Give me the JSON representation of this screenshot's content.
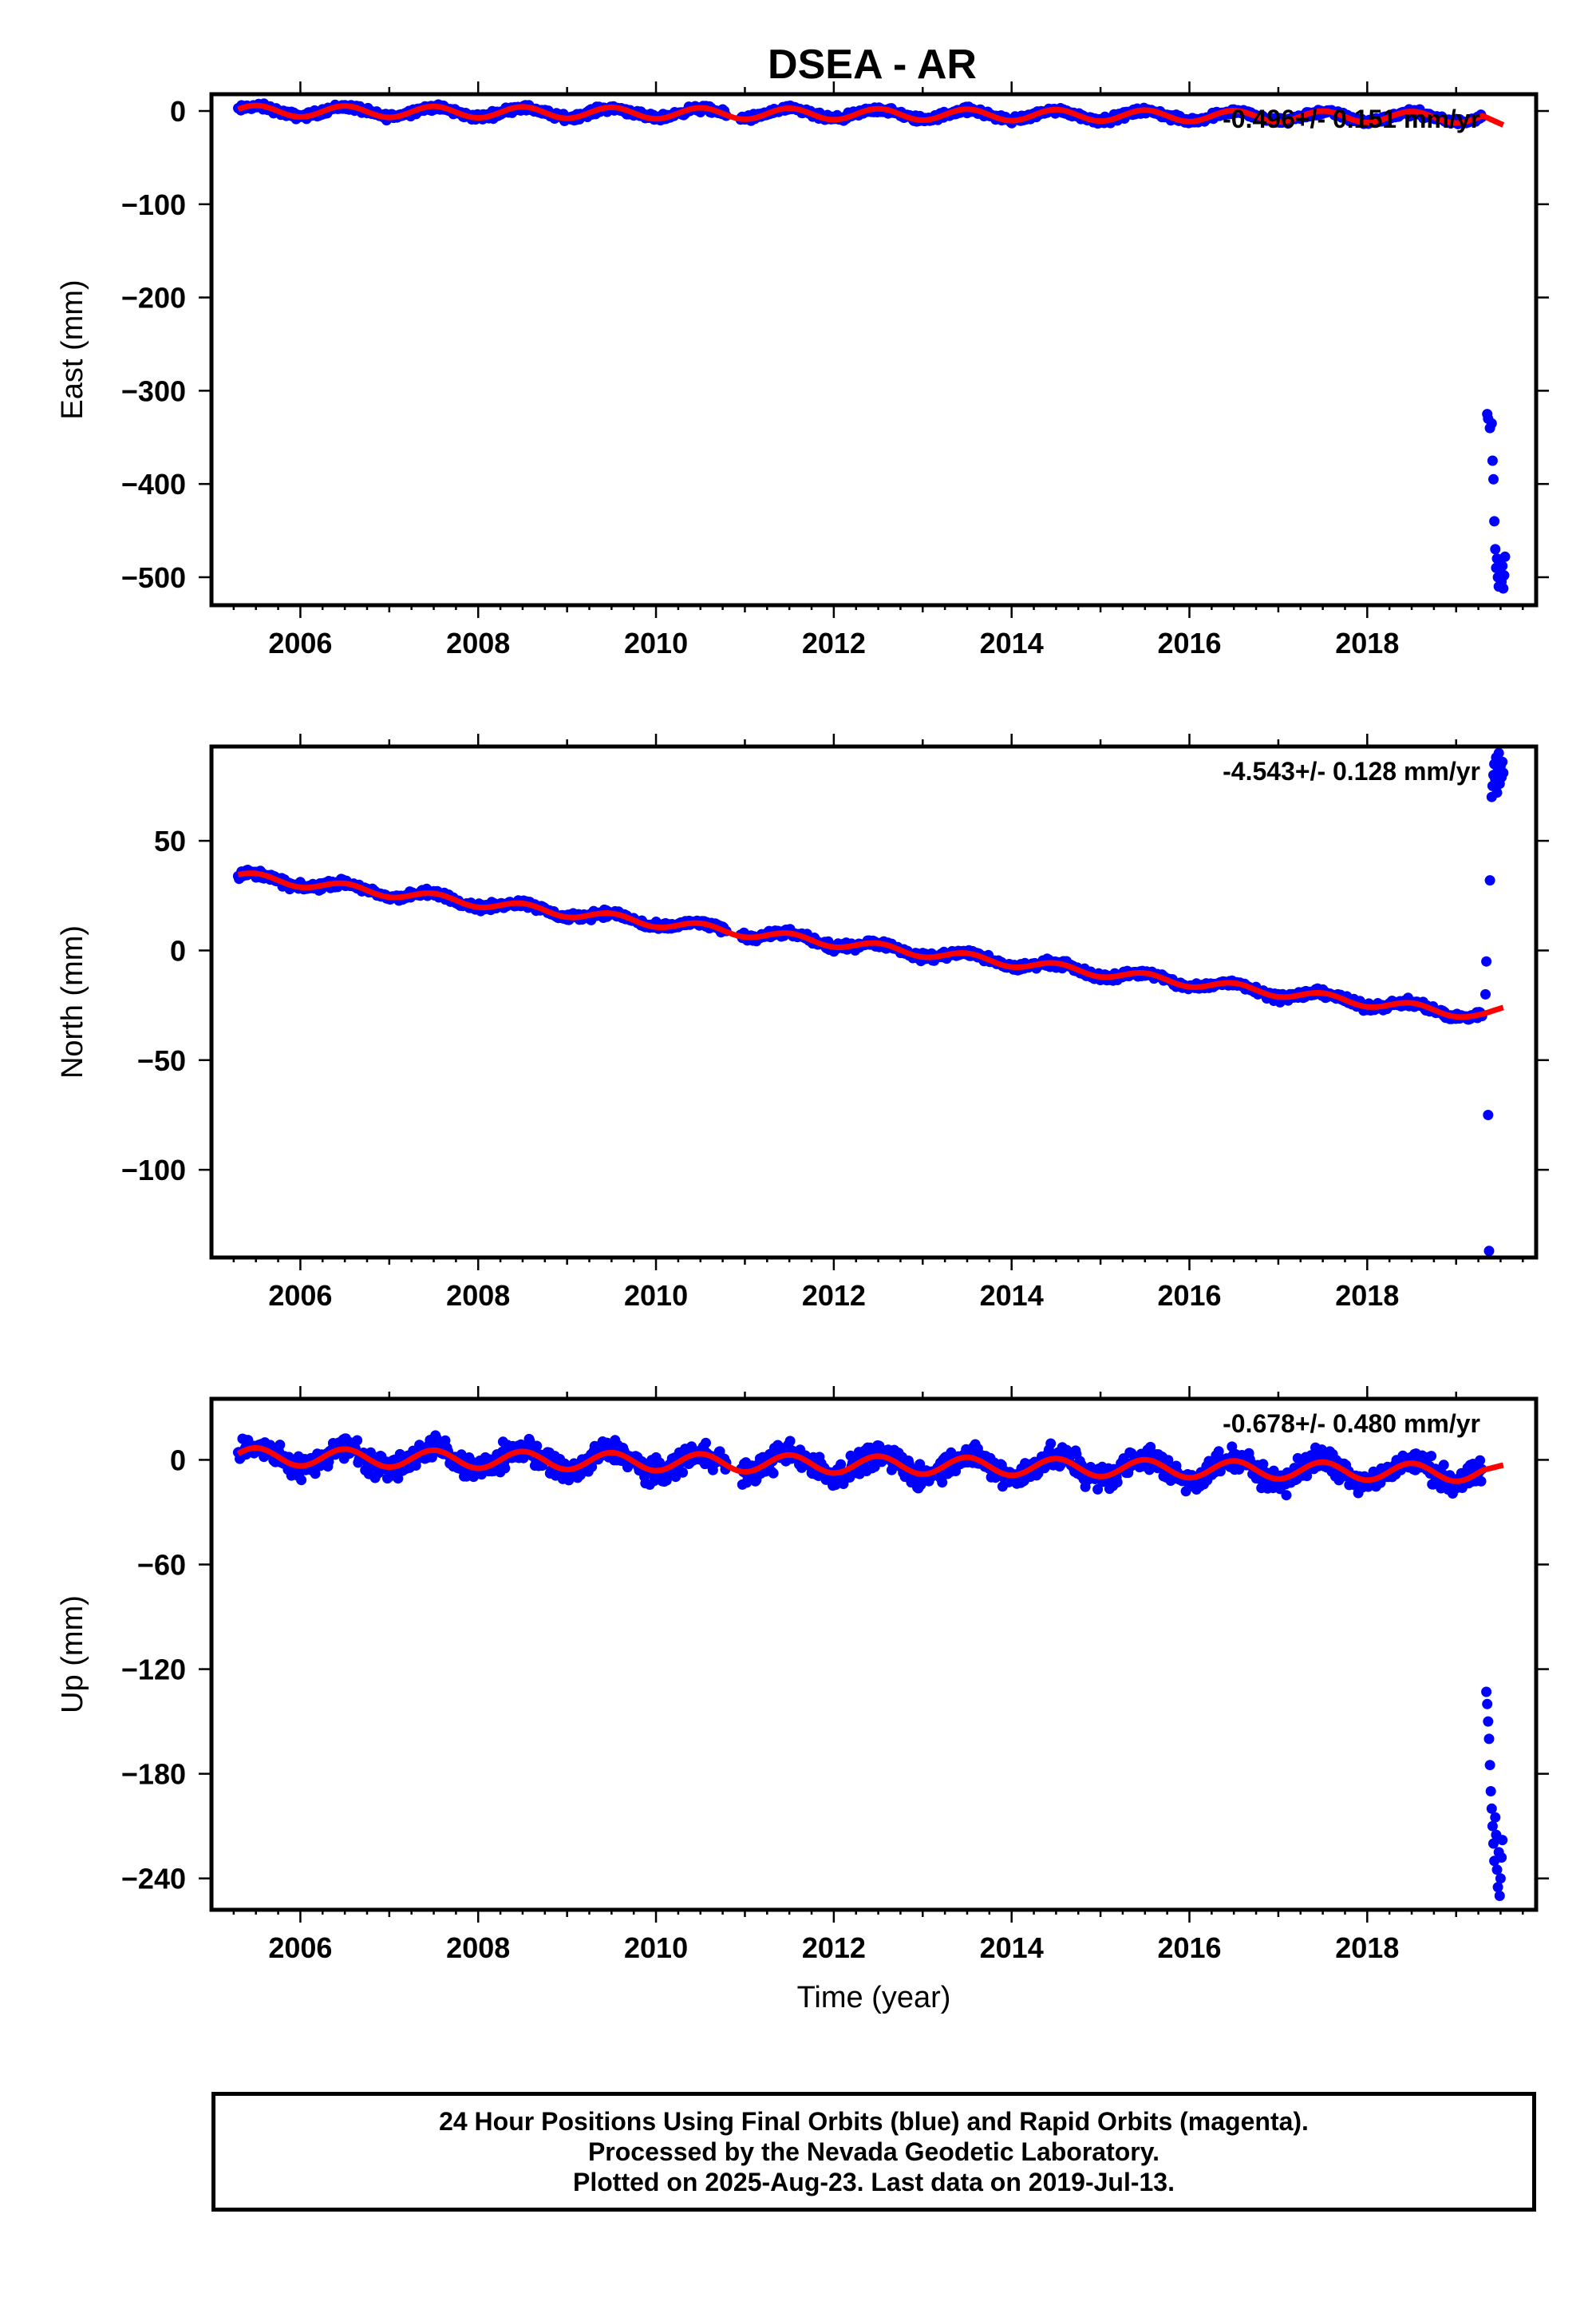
{
  "colors": {
    "final_orbits": "#0000ff",
    "model_fit": "#ff0000",
    "frame": "#000000"
  },
  "chart_data": [
    {
      "type": "scatter",
      "title": "DSEA - AR",
      "xlabel": "",
      "ylabel": "East (mm)",
      "xlim": [
        2005.0,
        2019.9
      ],
      "ylim": [
        -530,
        18
      ],
      "xticks": [
        2006,
        2008,
        2010,
        2012,
        2014,
        2016,
        2018
      ],
      "yticks": [
        0,
        -100,
        -200,
        -300,
        -400,
        -500
      ],
      "rate_label": "-0.496+/- 0.151 mm/yr",
      "series": [
        {
          "kind": "daily_positions",
          "color": "#0000ff",
          "x_range": [
            2005.3,
            2019.3
          ],
          "trend": {
            "start": 0,
            "slope": -0.496
          },
          "seasonal_amplitude": 5,
          "scatter": 3
        },
        {
          "kind": "offset_cluster",
          "color": "#0000ff",
          "points": [
            [
              2019.35,
              -325
            ],
            [
              2019.36,
              -330
            ],
            [
              2019.38,
              -340
            ],
            [
              2019.4,
              -335
            ],
            [
              2019.41,
              -375
            ],
            [
              2019.42,
              -395
            ],
            [
              2019.43,
              -440
            ],
            [
              2019.44,
              -470
            ],
            [
              2019.45,
              -490
            ],
            [
              2019.46,
              -480
            ],
            [
              2019.47,
              -500
            ],
            [
              2019.48,
              -510
            ],
            [
              2019.49,
              -485
            ],
            [
              2019.5,
              -495
            ],
            [
              2019.51,
              -505
            ],
            [
              2019.52,
              -488
            ],
            [
              2019.53,
              -512
            ],
            [
              2019.54,
              -498
            ],
            [
              2019.55,
              -478
            ]
          ]
        },
        {
          "kind": "model_fit",
          "color": "#ff0000",
          "x_range": [
            2005.3,
            2019.53
          ],
          "trend": {
            "start": 0,
            "slope": -0.496
          },
          "seasonal_amplitude": 6,
          "end_value": -15
        }
      ]
    },
    {
      "type": "scatter",
      "xlabel": "",
      "ylabel": "North (mm)",
      "xlim": [
        2005.0,
        2019.9
      ],
      "ylim": [
        -140,
        93
      ],
      "xticks": [
        2006,
        2008,
        2010,
        2012,
        2014,
        2016,
        2018
      ],
      "yticks": [
        50,
        0,
        -50,
        -100
      ],
      "rate_label": "-4.543+/- 0.128 mm/yr",
      "series": [
        {
          "kind": "daily_positions",
          "color": "#0000ff",
          "x_range": [
            2005.3,
            2019.3
          ],
          "trend": {
            "start": 34,
            "slope": -4.543
          },
          "seasonal_amplitude": 2,
          "scatter": 1.5
        },
        {
          "kind": "offset_cluster",
          "color": "#0000ff",
          "points": [
            [
              2019.33,
              -20
            ],
            [
              2019.34,
              -5
            ],
            [
              2019.36,
              -75
            ],
            [
              2019.37,
              -137
            ],
            [
              2019.38,
              32
            ],
            [
              2019.4,
              70
            ],
            [
              2019.41,
              75
            ],
            [
              2019.42,
              80
            ],
            [
              2019.43,
              85
            ],
            [
              2019.44,
              78
            ],
            [
              2019.45,
              88
            ],
            [
              2019.46,
              72
            ],
            [
              2019.47,
              82
            ],
            [
              2019.48,
              90
            ],
            [
              2019.49,
              76
            ],
            [
              2019.5,
              84
            ],
            [
              2019.51,
              79
            ],
            [
              2019.52,
              86
            ],
            [
              2019.53,
              81
            ]
          ]
        },
        {
          "kind": "model_fit",
          "color": "#ff0000",
          "x_range": [
            2005.3,
            2019.53
          ],
          "trend": {
            "start": 34,
            "slope": -4.543
          },
          "seasonal_amplitude": 2,
          "end_value": -26
        }
      ]
    },
    {
      "type": "scatter",
      "xlabel": "Time (year)",
      "ylabel": "Up (mm)",
      "xlim": [
        2005.0,
        2019.9
      ],
      "ylim": [
        -258,
        35
      ],
      "xticks": [
        2006,
        2008,
        2010,
        2012,
        2014,
        2016,
        2018
      ],
      "yticks": [
        0,
        -60,
        -120,
        -180,
        -240
      ],
      "rate_label": "-0.678+/- 0.480 mm/yr",
      "series": [
        {
          "kind": "daily_positions",
          "color": "#0000ff",
          "x_range": [
            2005.3,
            2019.3
          ],
          "trend": {
            "start": 2,
            "slope": -0.678
          },
          "seasonal_amplitude": 6,
          "scatter": 6
        },
        {
          "kind": "offset_cluster",
          "color": "#0000ff",
          "points": [
            [
              2019.34,
              -133
            ],
            [
              2019.35,
              -140
            ],
            [
              2019.36,
              -150
            ],
            [
              2019.37,
              -160
            ],
            [
              2019.38,
              -175
            ],
            [
              2019.39,
              -190
            ],
            [
              2019.4,
              -200
            ],
            [
              2019.41,
              -210
            ],
            [
              2019.42,
              -220
            ],
            [
              2019.43,
              -230
            ],
            [
              2019.44,
              -205
            ],
            [
              2019.45,
              -215
            ],
            [
              2019.46,
              -235
            ],
            [
              2019.47,
              -245
            ],
            [
              2019.48,
              -225
            ],
            [
              2019.49,
              -250
            ],
            [
              2019.5,
              -240
            ],
            [
              2019.51,
              -228
            ],
            [
              2019.52,
              -218
            ]
          ]
        },
        {
          "kind": "model_fit",
          "color": "#ff0000",
          "x_range": [
            2005.3,
            2019.53
          ],
          "trend": {
            "start": 2,
            "slope": -0.678
          },
          "seasonal_amplitude": 5,
          "end_value": -3
        }
      ]
    }
  ],
  "footer": {
    "line1": "24 Hour Positions Using Final Orbits (blue) and Rapid Orbits (magenta).",
    "line2": "Processed by the Nevada Geodetic Laboratory.",
    "line3": "Plotted on 2025-Aug-23. Last data on 2019-Jul-13."
  }
}
